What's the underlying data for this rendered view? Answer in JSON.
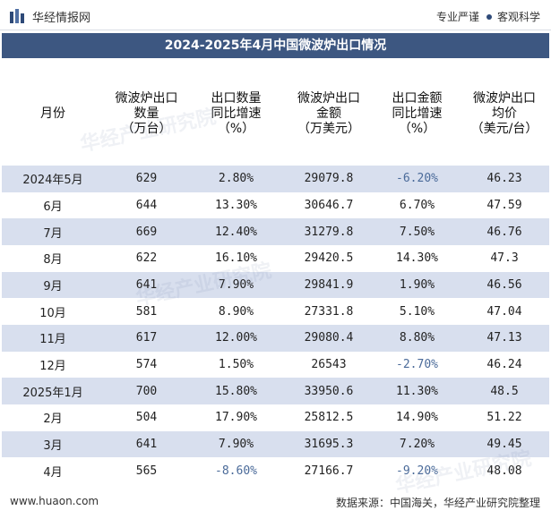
{
  "header": {
    "brand": "华经情报网",
    "tagline_left": "专业严谨",
    "tagline_right": "客观科学"
  },
  "title": "2024-2025年4月中国微波炉出口情况",
  "table": {
    "headers": [
      "月份",
      "微波炉出口\n数量\n（万台）",
      "出口数量\n同比增速\n（%）",
      "微波炉出口\n金额\n（万美元）",
      "出口金额\n同比增速\n（%）",
      "微波炉出口\n均价\n（美元/台）"
    ],
    "rows": [
      [
        "2024年5月",
        "629",
        "2.80%",
        "29079.8",
        "-6.20%",
        "46.23"
      ],
      [
        "6月",
        "644",
        "13.30%",
        "30646.7",
        "6.70%",
        "47.59"
      ],
      [
        "7月",
        "669",
        "12.40%",
        "31279.8",
        "7.50%",
        "46.76"
      ],
      [
        "8月",
        "622",
        "16.10%",
        "29420.5",
        "14.30%",
        "47.3"
      ],
      [
        "9月",
        "641",
        "7.90%",
        "29841.9",
        "1.90%",
        "46.56"
      ],
      [
        "10月",
        "581",
        "8.90%",
        "27331.8",
        "5.10%",
        "47.04"
      ],
      [
        "11月",
        "617",
        "12.00%",
        "29080.4",
        "8.80%",
        "47.13"
      ],
      [
        "12月",
        "574",
        "1.50%",
        "26543",
        "-2.70%",
        "46.24"
      ],
      [
        "2025年1月",
        "700",
        "15.80%",
        "33950.6",
        "11.30%",
        "48.5"
      ],
      [
        "2月",
        "504",
        "17.90%",
        "25812.5",
        "14.90%",
        "51.22"
      ],
      [
        "3月",
        "641",
        "7.90%",
        "31695.3",
        "7.20%",
        "49.45"
      ],
      [
        "4月",
        "565",
        "-8.60%",
        "27166.7",
        "-9.20%",
        "48.08"
      ]
    ]
  },
  "footer": {
    "website": "www.huaon.com",
    "source": "数据来源：中国海关，华经产业研究院整理"
  },
  "watermark_text": "华经产业研究院",
  "colors": {
    "title_bg": "#3d5781",
    "stripe": "#d8dfee",
    "negative": "#4a6a99"
  }
}
